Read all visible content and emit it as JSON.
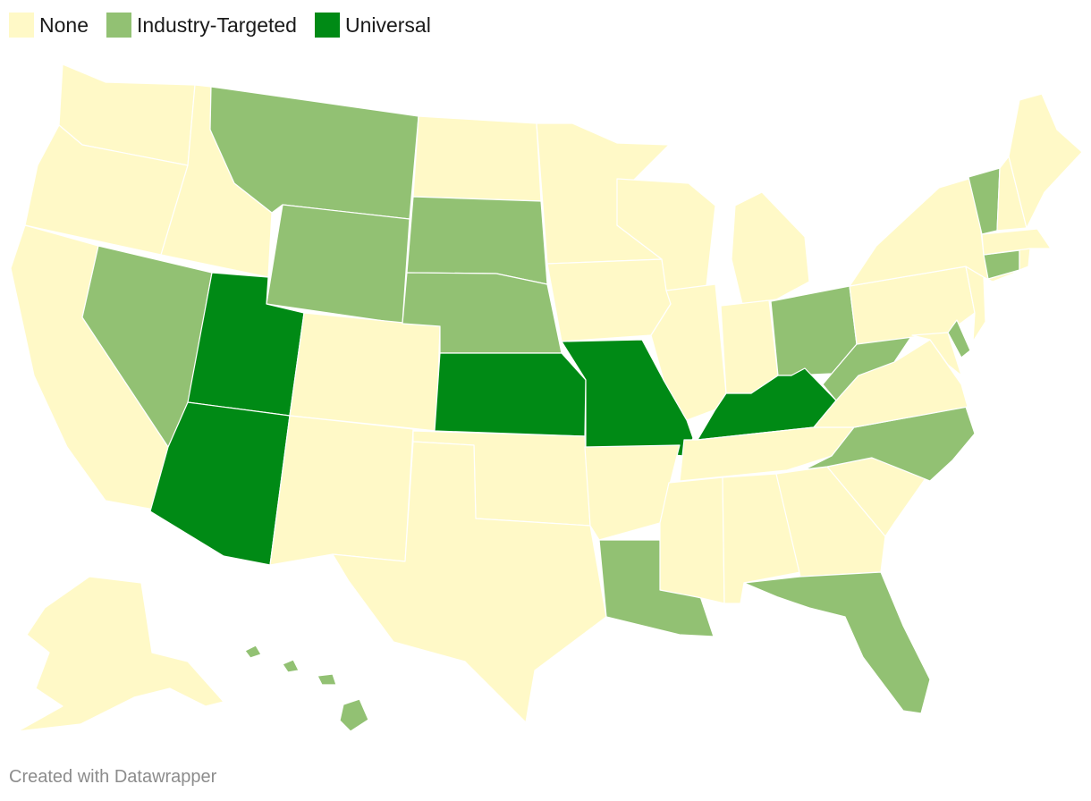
{
  "legend": {
    "items": [
      {
        "label": "None",
        "color": "#fff9c7"
      },
      {
        "label": "Industry-Targeted",
        "color": "#92c173"
      },
      {
        "label": "Universal",
        "color": "#008a15"
      }
    ]
  },
  "states": {
    "WA": "None",
    "OR": "None",
    "CA": "None",
    "ID": "None",
    "NV": "Industry-Targeted",
    "MT": "Industry-Targeted",
    "WY": "Industry-Targeted",
    "UT": "Universal",
    "AZ": "Universal",
    "CO": "None",
    "NM": "None",
    "ND": "None",
    "SD": "Industry-Targeted",
    "NE": "Industry-Targeted",
    "KS": "Universal",
    "OK": "None",
    "TX": "None",
    "MN": "None",
    "IA": "None",
    "MO": "Universal",
    "AR": "None",
    "LA": "Industry-Targeted",
    "WI": "None",
    "IL": "None",
    "MI": "None",
    "IN": "None",
    "OH": "Industry-Targeted",
    "KY": "Universal",
    "TN": "None",
    "MS": "None",
    "AL": "None",
    "GA": "None",
    "FL": "Industry-Targeted",
    "SC": "None",
    "NC": "Industry-Targeted",
    "VA": "None",
    "WV": "Industry-Targeted",
    "MD": "None",
    "DE": "Industry-Targeted",
    "PA": "None",
    "NJ": "None",
    "NY": "None",
    "CT": "Industry-Targeted",
    "RI": "None",
    "MA": "None",
    "VT": "Industry-Targeted",
    "NH": "None",
    "ME": "None",
    "AK": "None",
    "HI": "Industry-Targeted"
  },
  "footer": {
    "credit": "Created with Datawrapper"
  }
}
